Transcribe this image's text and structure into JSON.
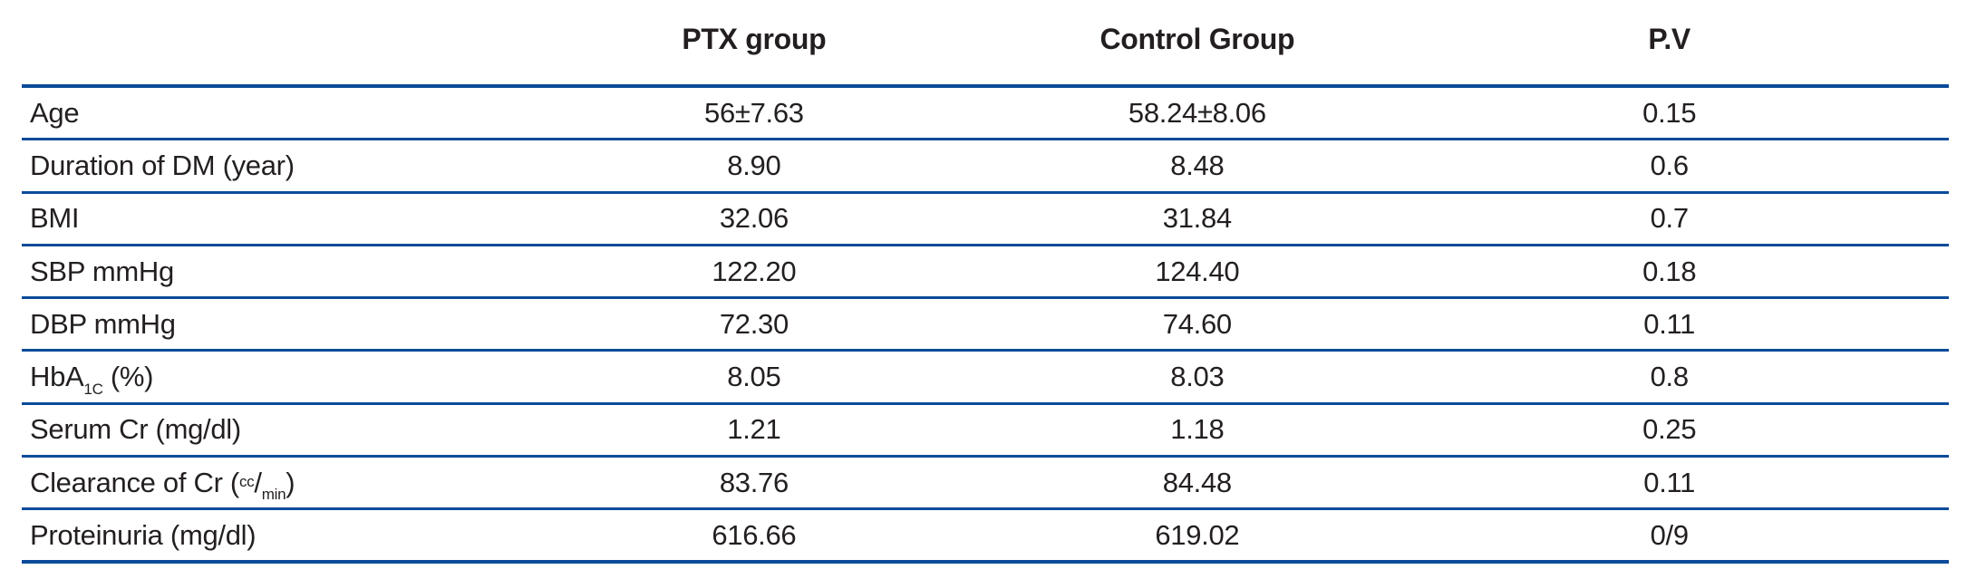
{
  "colors": {
    "line": "#0B4B99",
    "text": "#231F20"
  },
  "table": {
    "columns": [
      "",
      "PTX group",
      "Control Group",
      "P.V"
    ],
    "rows": [
      {
        "label_parts": [
          {
            "t": "Age"
          }
        ],
        "label_plain": "Age",
        "ptx": "56±7.63",
        "control": "58.24±8.06",
        "pv": "0.15"
      },
      {
        "label_parts": [
          {
            "t": "Duration of DM (year)"
          }
        ],
        "label_plain": "Duration of DM (year)",
        "ptx": "8.90",
        "control": "8.48",
        "pv": "0.6"
      },
      {
        "label_parts": [
          {
            "t": "BMI"
          }
        ],
        "label_plain": "BMI",
        "ptx": "32.06",
        "control": "31.84",
        "pv": "0.7"
      },
      {
        "label_parts": [
          {
            "t": "SBP mmHg"
          }
        ],
        "label_plain": "SBP mmHg",
        "ptx": "122.20",
        "control": "124.40",
        "pv": "0.18"
      },
      {
        "label_parts": [
          {
            "t": "DBP mmHg"
          }
        ],
        "label_plain": "DBP mmHg",
        "ptx": "72.30",
        "control": "74.60",
        "pv": "0.11"
      },
      {
        "label_parts": [
          {
            "t": "HbA"
          },
          {
            "t": "1C",
            "s": "sub"
          },
          {
            "t": " (%)"
          }
        ],
        "label_plain": "HbA1C (%)",
        "ptx": "8.05",
        "control": "8.03",
        "pv": "0.8"
      },
      {
        "label_parts": [
          {
            "t": "Serum Cr (mg/dl)"
          }
        ],
        "label_plain": "Serum Cr (mg/dl)",
        "ptx": "1.21",
        "control": "1.18",
        "pv": "0.25"
      },
      {
        "label_parts": [
          {
            "t": "Clearance of Cr ("
          },
          {
            "t": "cc",
            "s": "sup"
          },
          {
            "t": "/"
          },
          {
            "t": "min",
            "s": "sub"
          },
          {
            "t": ")"
          }
        ],
        "label_plain": "Clearance of Cr (cc/min)",
        "ptx": "83.76",
        "control": "84.48",
        "pv": "0.11"
      },
      {
        "label_parts": [
          {
            "t": "Proteinuria (mg/dl)"
          }
        ],
        "label_plain": "Proteinuria (mg/dl)",
        "ptx": "616.66",
        "control": "619.02",
        "pv": "0/9"
      }
    ]
  }
}
